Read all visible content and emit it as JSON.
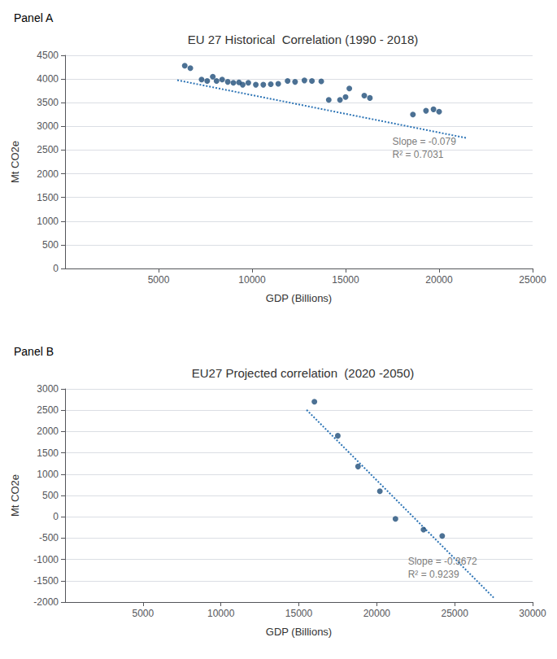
{
  "chart_data": [
    {
      "type": "scatter",
      "title": "EU 27 Historical  Correlation (1990 - 2018)",
      "panel_label": "Panel A",
      "xlabel": "GDP (Billions)",
      "ylabel": "Mt CO2e",
      "xlim": [
        0,
        25000
      ],
      "ylim": [
        0,
        4500
      ],
      "xticks": [
        5000,
        10000,
        15000,
        20000,
        25000
      ],
      "yticks": [
        0,
        500,
        1000,
        1500,
        2000,
        2500,
        3000,
        3500,
        4000,
        4500
      ],
      "grid": "y",
      "series": [
        {
          "type": "scatter",
          "color": "#1F4E79",
          "x": [
            6400,
            6700,
            7300,
            7600,
            7900,
            8100,
            8400,
            8700,
            9000,
            9300,
            9500,
            9800,
            10200,
            10600,
            11000,
            11400,
            11900,
            12300,
            12800,
            13200,
            13700,
            14100,
            14700,
            15000,
            15200,
            16000,
            16300,
            18600,
            19300,
            19700,
            20000
          ],
          "values": [
            4280,
            4230,
            3990,
            3960,
            4050,
            3960,
            3990,
            3940,
            3920,
            3930,
            3880,
            3920,
            3880,
            3880,
            3890,
            3900,
            3960,
            3940,
            3970,
            3960,
            3950,
            3560,
            3560,
            3620,
            3800,
            3650,
            3600,
            3250,
            3330,
            3360,
            3310
          ]
        },
        {
          "type": "line",
          "line_style": "dotted",
          "color": "#2E75B6",
          "x": [
            6000,
            21500
          ],
          "values": [
            3976,
            2751.5
          ]
        }
      ],
      "annotations": [
        {
          "text": "Slope = -0.079\nR² = 0.7031",
          "x": 17500,
          "y": 2820
        }
      ]
    },
    {
      "type": "scatter",
      "title": "EU27 Projected correlation  (2020 -2050)",
      "panel_label": "Panel B",
      "xlabel": "GDP (Billions)",
      "ylabel": "Mt CO2e",
      "xlim": [
        0,
        30000
      ],
      "ylim": [
        -2000,
        3000
      ],
      "xticks": [
        5000,
        10000,
        15000,
        20000,
        25000,
        30000
      ],
      "yticks": [
        -2000,
        -1500,
        -1000,
        -500,
        0,
        500,
        1000,
        1500,
        2000,
        2500,
        3000
      ],
      "grid": "y",
      "series": [
        {
          "type": "scatter",
          "color": "#1F4E79",
          "x": [
            16000,
            17500,
            18800,
            20200,
            21200,
            23000,
            24200
          ],
          "values": [
            2700,
            1900,
            1180,
            600,
            -50,
            -300,
            -450
          ]
        },
        {
          "type": "line",
          "line_style": "dotted",
          "color": "#2E75B6",
          "x": [
            15500,
            27500
          ],
          "values": [
            2508.4,
            -1898
          ]
        }
      ],
      "annotations": [
        {
          "text": "Slope = -0.3672\nR² = 0.9239",
          "x": 22000,
          "y": -900
        }
      ]
    }
  ]
}
